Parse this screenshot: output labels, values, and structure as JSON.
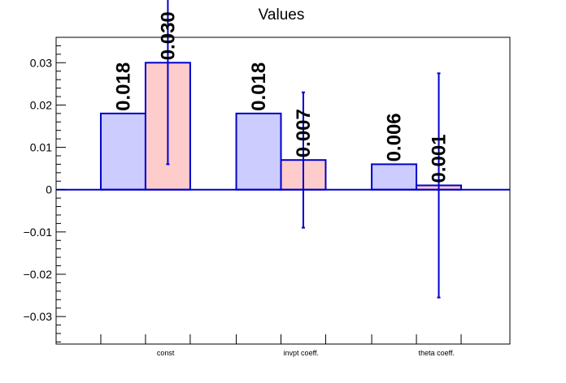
{
  "chart_data": {
    "type": "bar",
    "title": "Values",
    "xlabel": "",
    "ylabel": "",
    "categories": [
      "const",
      "invpt coeff.",
      "theta coeff."
    ],
    "series": [
      {
        "values": [
          0.018,
          0.018,
          0.006
        ],
        "labels": [
          "0.018",
          "0.018",
          "0.006"
        ],
        "fill": "#ccccff",
        "errors": [
          null,
          null,
          null
        ]
      },
      {
        "values": [
          0.03,
          0.007,
          0.001
        ],
        "labels": [
          "0.030",
          "0.007",
          "0.001"
        ],
        "fill": "#ffcccc",
        "errors": [
          0.024,
          0.016,
          0.0265
        ]
      }
    ],
    "ylim": [
      -0.0365,
      0.036
    ],
    "yticks": [
      -0.03,
      -0.02,
      -0.01,
      0,
      0.01,
      0.02,
      0.03
    ],
    "ytick_labels": [
      "−0.03",
      "−0.02",
      "−0.01",
      "0",
      "0.01",
      "0.02",
      "0.03"
    ],
    "grid": false,
    "legend": "none",
    "colors": {
      "outline": "#0000cc",
      "axis": "#000000"
    }
  }
}
